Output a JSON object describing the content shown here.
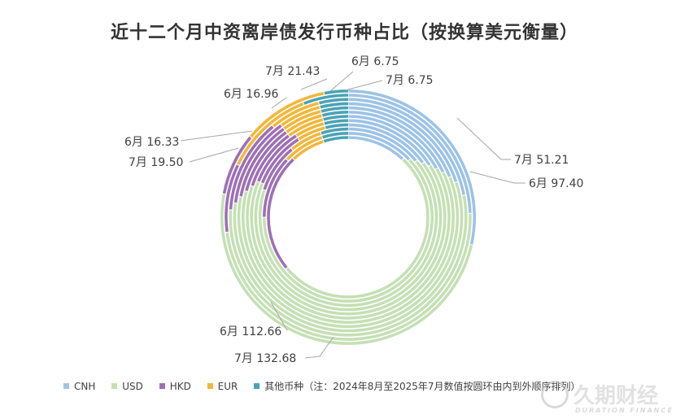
{
  "chart_data": {
    "type": "multi-ring donut",
    "title": "近十二个月中资离岸债发行币种占比（按换算美元衡量）",
    "categories": [
      "CNH",
      "USD",
      "HKD",
      "EUR",
      "其他币种"
    ],
    "colors": [
      "#9dc3e6",
      "#c5e0b4",
      "#9e70b5",
      "#f2b73a",
      "#4aa3b5"
    ],
    "ring_order_note": "（注：2024年8月至2025年7月数值按圆环由内到外顺序排列）",
    "rings": [
      {
        "month": "2024-08",
        "shares": [
          0.12,
          0.52,
          0.24,
          0.07,
          0.05
        ]
      },
      {
        "month": "2024-09",
        "shares": [
          0.13,
          0.62,
          0.12,
          0.08,
          0.05
        ]
      },
      {
        "month": "2024-10",
        "shares": [
          0.14,
          0.66,
          0.09,
          0.06,
          0.05
        ]
      },
      {
        "month": "2024-11",
        "shares": [
          0.15,
          0.66,
          0.1,
          0.05,
          0.04
        ]
      },
      {
        "month": "2024-12",
        "shares": [
          0.16,
          0.65,
          0.1,
          0.05,
          0.04
        ]
      },
      {
        "month": "2025-01",
        "shares": [
          0.17,
          0.63,
          0.1,
          0.06,
          0.04
        ]
      },
      {
        "month": "2025-02",
        "shares": [
          0.18,
          0.61,
          0.11,
          0.06,
          0.04
        ]
      },
      {
        "month": "2025-03",
        "shares": [
          0.19,
          0.59,
          0.12,
          0.06,
          0.04
        ]
      },
      {
        "month": "2025-04",
        "shares": [
          0.2,
          0.57,
          0.13,
          0.06,
          0.04
        ]
      },
      {
        "month": "2025-05",
        "shares": [
          0.22,
          0.54,
          0.13,
          0.07,
          0.04
        ]
      },
      {
        "month": "2025-06",
        "shares": [
          0.245,
          0.4855,
          0.09,
          0.12,
          0.0595
        ]
      },
      {
        "month": "2025-07",
        "shares": [
          0.285,
          0.4945,
          0.08,
          0.11,
          0.0305
        ]
      }
    ],
    "annotations": [
      {
        "text": "6月 6.75"
      },
      {
        "text": "7月 6.75"
      },
      {
        "text": "7月 21.43"
      },
      {
        "text": "6月 16.96"
      },
      {
        "text": "6月 16.33"
      },
      {
        "text": "7月 19.50"
      },
      {
        "text": "7月 51.21"
      },
      {
        "text": "6月 97.40"
      },
      {
        "text": "6月 112.66"
      },
      {
        "text": "7月 132.68"
      }
    ]
  },
  "watermark": {
    "cn": "久期财经",
    "en": "DURATION FINANCE"
  }
}
